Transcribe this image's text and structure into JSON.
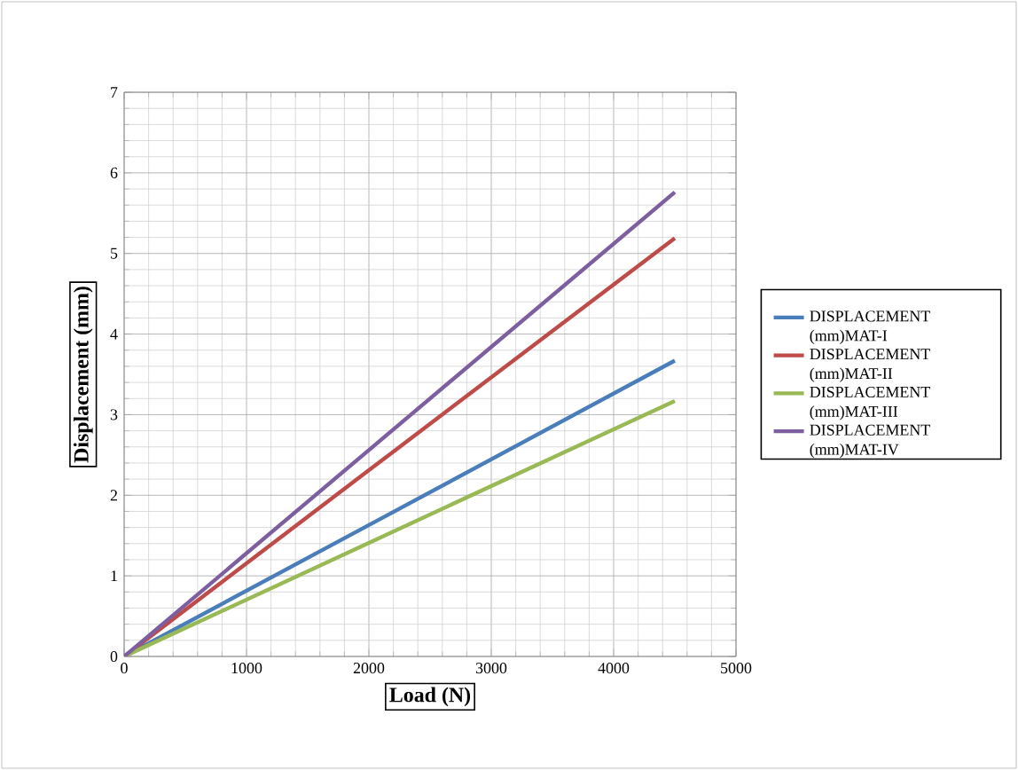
{
  "chart_data": {
    "type": "line",
    "xlabel": "Load (N)",
    "ylabel": "Displacement (mm)",
    "xlim": [
      0,
      5000
    ],
    "xticks": [
      0,
      1000,
      2000,
      3000,
      4000,
      5000
    ],
    "ylim": [
      0,
      7
    ],
    "yticks": [
      0,
      1,
      2,
      3,
      4,
      5,
      6,
      7
    ],
    "grid": true,
    "legend": "right",
    "marker": "none",
    "line_style": "solid",
    "series": [
      {
        "name": "DISPLACEMENT (mm)MAT-I",
        "color": "#4a7ebb",
        "x": [
          0,
          2000,
          4500
        ],
        "values": [
          0,
          1.63,
          3.67
        ]
      },
      {
        "name": "DISPLACEMENT (mm)MAT-II",
        "color": "#be4b48",
        "x": [
          0,
          2000,
          4500
        ],
        "values": [
          0,
          2.31,
          5.19
        ]
      },
      {
        "name": "DISPLACEMENT (mm)MAT-III",
        "color": "#98b954",
        "x": [
          0,
          2000,
          4500
        ],
        "values": [
          0,
          1.41,
          3.17
        ]
      },
      {
        "name": "DISPLACEMENT (mm)MAT-IV",
        "color": "#7d5fa0",
        "x": [
          0,
          2000,
          4500
        ],
        "values": [
          0,
          2.56,
          5.76
        ]
      }
    ]
  }
}
